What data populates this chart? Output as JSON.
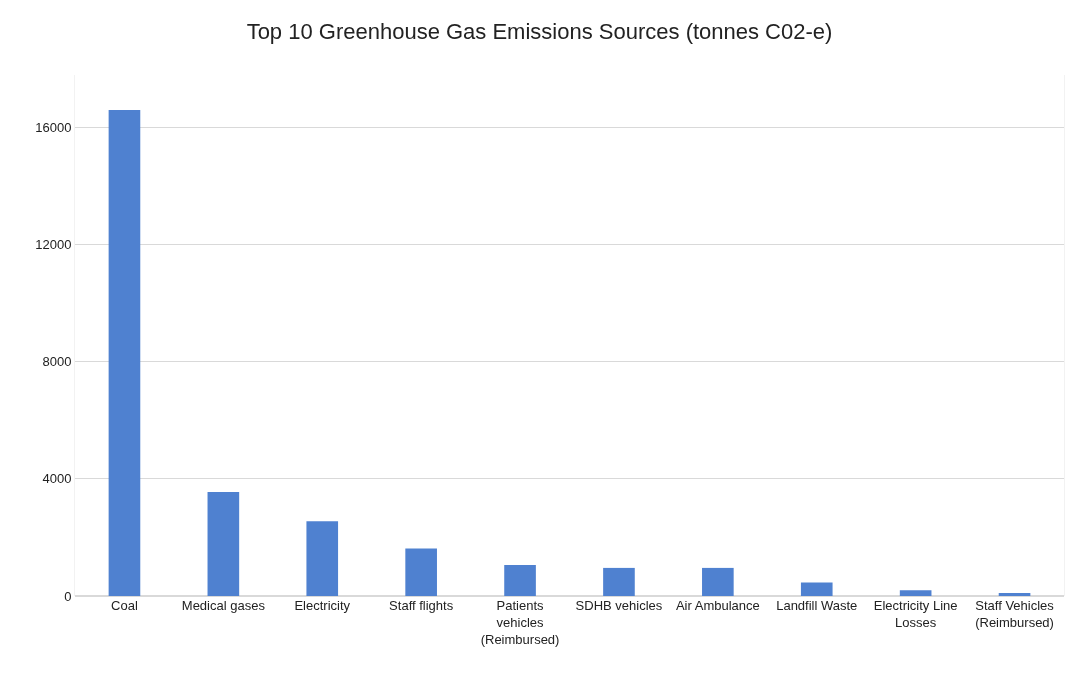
{
  "chart_data": {
    "type": "bar",
    "title": "Top 10 Greenhouse Gas Emissions Sources (tonnes C02-e)",
    "categories": [
      "Coal",
      "Medical gases",
      "Electricity",
      "Staff flights",
      "Patients vehicles (Reimbursed)",
      "SDHB vehicles",
      "Air Ambulance",
      "Landfill Waste",
      "Electricity Line Losses",
      "Staff Vehicles (Reimbursed)"
    ],
    "values": [
      16600,
      3550,
      2550,
      1620,
      1060,
      960,
      960,
      460,
      200,
      100
    ],
    "color": "#4f81d0",
    "ylim": [
      0,
      17800
    ],
    "yticks": [
      0,
      4000,
      8000,
      12000,
      16000
    ],
    "grid": "y"
  }
}
